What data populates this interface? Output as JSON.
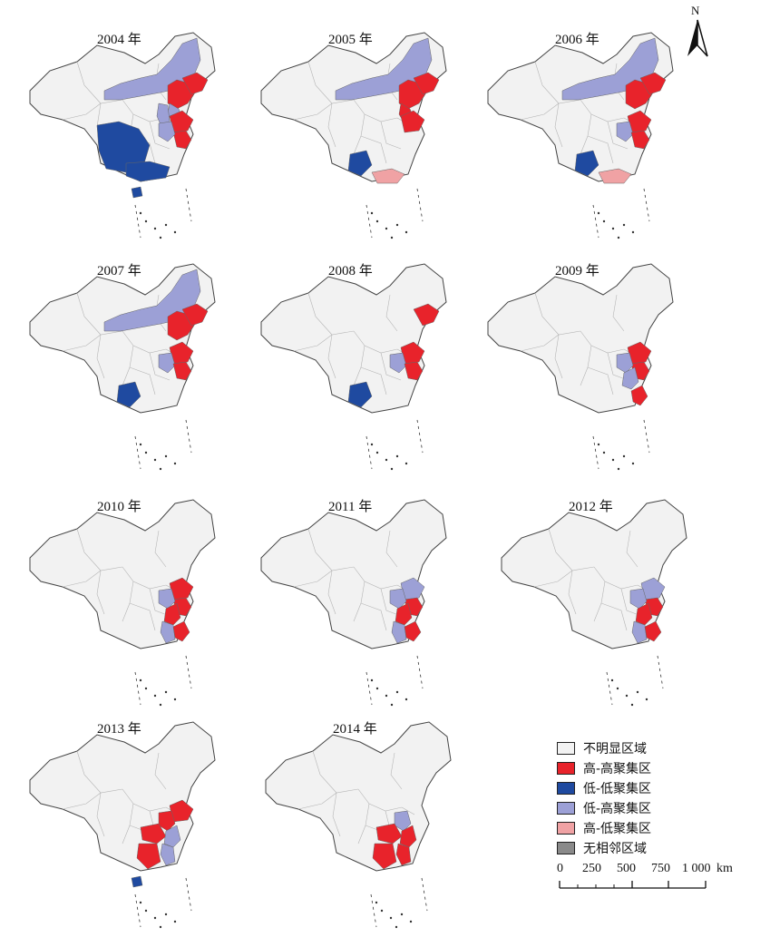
{
  "panels": [
    {
      "year": "2004 年",
      "regions": {
        "ne": "lh",
        "beijing": "hh",
        "hebei": "lh",
        "shanxi": "lh",
        "liaoning": "hh",
        "shandong": "hh",
        "jiangsu": "hh",
        "henan": "lh",
        "yunnan_guizhou": "ll",
        "guangxi": "ll",
        "hainan": "ll"
      }
    },
    {
      "year": "2005 年",
      "regions": {
        "ne": "lh",
        "beijing": "hh",
        "hebei": "hh",
        "liaoning": "hh",
        "shandong": "hh",
        "guizhou": "ll",
        "guangdong": "hl"
      }
    },
    {
      "year": "2006 年",
      "regions": {
        "ne": "lh",
        "beijing": "hh",
        "liaoning": "hh",
        "shandong": "hh",
        "henan": "lh",
        "jiangsu": "hh",
        "guizhou": "ll",
        "guangdong": "hl"
      }
    },
    {
      "year": "2007 年",
      "regions": {
        "ne": "lh",
        "beijing": "hh",
        "liaoning": "hh",
        "shandong": "hh",
        "henan": "lh",
        "jiangsu": "hh",
        "guizhou": "ll"
      }
    },
    {
      "year": "2008 年",
      "regions": {
        "liaoning": "hh",
        "shandong": "hh",
        "henan": "lh",
        "jiangsu": "hh",
        "guizhou": "ll"
      }
    },
    {
      "year": "2009 年",
      "regions": {
        "shandong": "hh",
        "jiangsu": "hh",
        "henan": "lh",
        "anhui": "lh",
        "zhejiang": "hh"
      }
    },
    {
      "year": "2010 年",
      "regions": {
        "shandong": "hh",
        "jiangsu": "hh",
        "henan": "lh",
        "anhui": "hh",
        "jiangxi": "lh",
        "zhejiang": "hh"
      }
    },
    {
      "year": "2011 年",
      "regions": {
        "shandong": "lh",
        "jiangsu": "hh",
        "henan": "lh",
        "anhui": "hh",
        "jiangxi": "lh",
        "zhejiang": "hh"
      }
    },
    {
      "year": "2012 年",
      "regions": {
        "shandong": "lh",
        "jiangsu": "hh",
        "henan": "lh",
        "anhui": "hh",
        "jiangxi": "lh",
        "zhejiang": "hh"
      }
    },
    {
      "year": "2013 年",
      "regions": {
        "shandong": "hh",
        "henan": "hh",
        "hubei": "hh",
        "hunan": "hh",
        "anhui": "lh",
        "jiangxi": "lh",
        "hainan": "ll"
      }
    },
    {
      "year": "2014 年",
      "regions": {
        "henan": "lh",
        "hubei": "hh",
        "hunan": "hh",
        "anhui": "hh",
        "jiangxi": "hh"
      }
    }
  ],
  "legend": [
    {
      "key": "ns",
      "label": "不明显区域",
      "color": "#f2f2f2"
    },
    {
      "key": "hh",
      "label": "高-高聚集区",
      "color": "#e8232b"
    },
    {
      "key": "ll",
      "label": "低-低聚集区",
      "color": "#1f4aa0"
    },
    {
      "key": "lh",
      "label": "低-高聚集区",
      "color": "#9ca0d6"
    },
    {
      "key": "hl",
      "label": "高-低聚集区",
      "color": "#f0a2a4"
    },
    {
      "key": "nn",
      "label": "无相邻区域",
      "color": "#8a8a8a"
    }
  ],
  "north_arrow": {
    "label": "N"
  },
  "scale_bar": {
    "ticks": [
      "0",
      "250",
      "500",
      "750",
      "1 000"
    ],
    "unit": "km"
  }
}
